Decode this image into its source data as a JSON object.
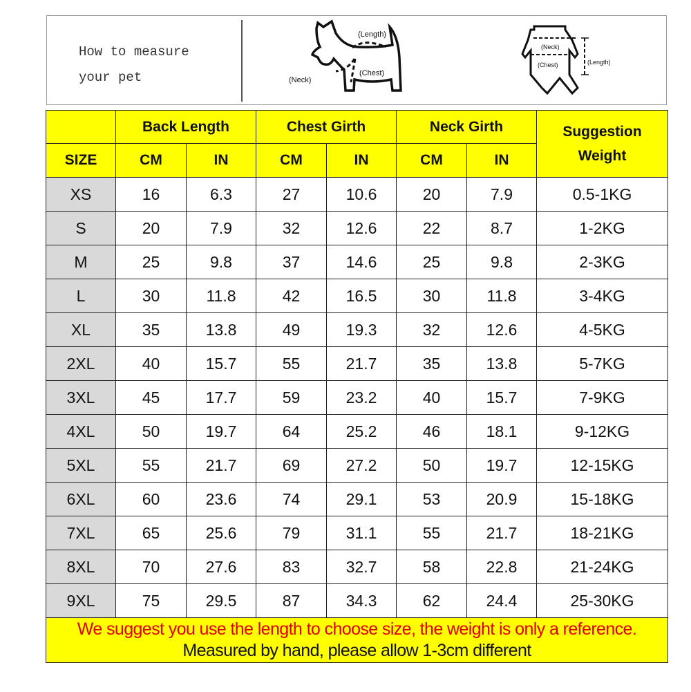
{
  "measure_box": {
    "title_line1": "How to measure",
    "title_line2": "your pet",
    "dog_labels": {
      "length": "(Length)",
      "neck": "(Neck)",
      "chest": "(Chest)"
    },
    "shirt_labels": {
      "neck": "(Neck)",
      "chest": "(Chest)",
      "length": "(Length)"
    }
  },
  "table": {
    "header_groups": [
      "Back Length",
      "Chest Girth",
      "Neck Girth"
    ],
    "suggestion_label": "Suggestion Weight",
    "size_label": "SIZE",
    "unit_cm": "CM",
    "unit_in": "IN",
    "rows": [
      [
        "XS",
        "16",
        "6.3",
        "27",
        "10.6",
        "20",
        "7.9",
        "0.5-1KG"
      ],
      [
        "S",
        "20",
        "7.9",
        "32",
        "12.6",
        "22",
        "8.7",
        "1-2KG"
      ],
      [
        "M",
        "25",
        "9.8",
        "37",
        "14.6",
        "25",
        "9.8",
        "2-3KG"
      ],
      [
        "L",
        "30",
        "11.8",
        "42",
        "16.5",
        "30",
        "11.8",
        "3-4KG"
      ],
      [
        "XL",
        "35",
        "13.8",
        "49",
        "19.3",
        "32",
        "12.6",
        "4-5KG"
      ],
      [
        "2XL",
        "40",
        "15.7",
        "55",
        "21.7",
        "35",
        "13.8",
        "5-7KG"
      ],
      [
        "3XL",
        "45",
        "17.7",
        "59",
        "23.2",
        "40",
        "15.7",
        "7-9KG"
      ],
      [
        "4XL",
        "50",
        "19.7",
        "64",
        "25.2",
        "46",
        "18.1",
        "9-12KG"
      ],
      [
        "5XL",
        "55",
        "21.7",
        "69",
        "27.2",
        "50",
        "19.7",
        "12-15KG"
      ],
      [
        "6XL",
        "60",
        "23.6",
        "74",
        "29.1",
        "53",
        "20.9",
        "15-18KG"
      ],
      [
        "7XL",
        "65",
        "25.6",
        "79",
        "31.1",
        "55",
        "21.7",
        "18-21KG"
      ],
      [
        "8XL",
        "70",
        "27.6",
        "83",
        "32.7",
        "58",
        "22.8",
        "21-24KG"
      ],
      [
        "9XL",
        "75",
        "29.5",
        "87",
        "34.3",
        "62",
        "24.4",
        "25-30KG"
      ]
    ]
  },
  "footer": {
    "note_red": "We suggest you use the length to choose size, the weight is only a reference.",
    "note_black": "Measured by hand, please allow 1-3cm different"
  },
  "colors": {
    "header_bg": "#ffff00",
    "size_bg": "#d9d9d9",
    "note_red": "#e00000"
  }
}
